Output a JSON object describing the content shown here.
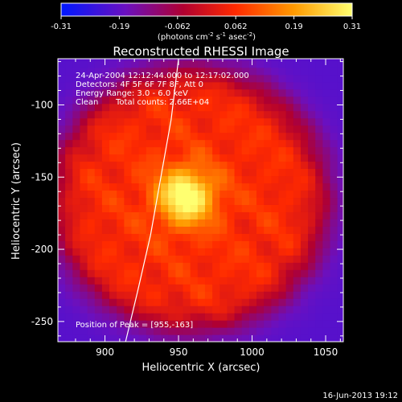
{
  "chart_data": {
    "type": "heatmap",
    "title": "Reconstructed RHESSI Image",
    "xlabel": "Heliocentric X (arcsec)",
    "ylabel": "Heliocentric Y (arcsec)",
    "xlim": [
      868,
      1062
    ],
    "ylim": [
      -264,
      -68
    ],
    "xticks": [
      900,
      950,
      1000,
      1050
    ],
    "yticks": [
      -100,
      -150,
      -200,
      -250
    ],
    "colorbar": {
      "min": -0.31,
      "max": 0.31,
      "ticks": [
        "-0.31",
        "-0.19",
        "-0.062",
        "0.062",
        "0.19",
        "0.31"
      ],
      "label": "(photons cm",
      "label_sup1": "-2",
      "label_mid": " s",
      "label_sup2": "-1",
      "label_mid2": " asec",
      "label_sup3": "-2",
      "label_end": ")"
    },
    "annotations": {
      "line1": "24-Apr-2004 12:12:44.000 to 12:17:02.000",
      "line2": "Detectors: 4F 5F 6F 7F 8F, Att 0",
      "line3": "Energy Range: 3.0 - 6.0 keV",
      "line4_a": "Clean",
      "line4_b": "Total counts: 2.66E+04",
      "peak": "Position of Peak = [955,-163]"
    },
    "peak": {
      "x": 955,
      "y": -163,
      "value": 0.31
    },
    "limb_curve": [
      [
        914,
        -264
      ],
      [
        922,
        -230
      ],
      [
        931,
        -190
      ],
      [
        938,
        -150
      ],
      [
        945,
        -110
      ],
      [
        950,
        -68
      ]
    ],
    "emission_region": {
      "center": [
        958,
        -165
      ],
      "radius_x": 95,
      "radius_y": 92
    },
    "timestamp": "16-Jun-2013 19:12"
  }
}
